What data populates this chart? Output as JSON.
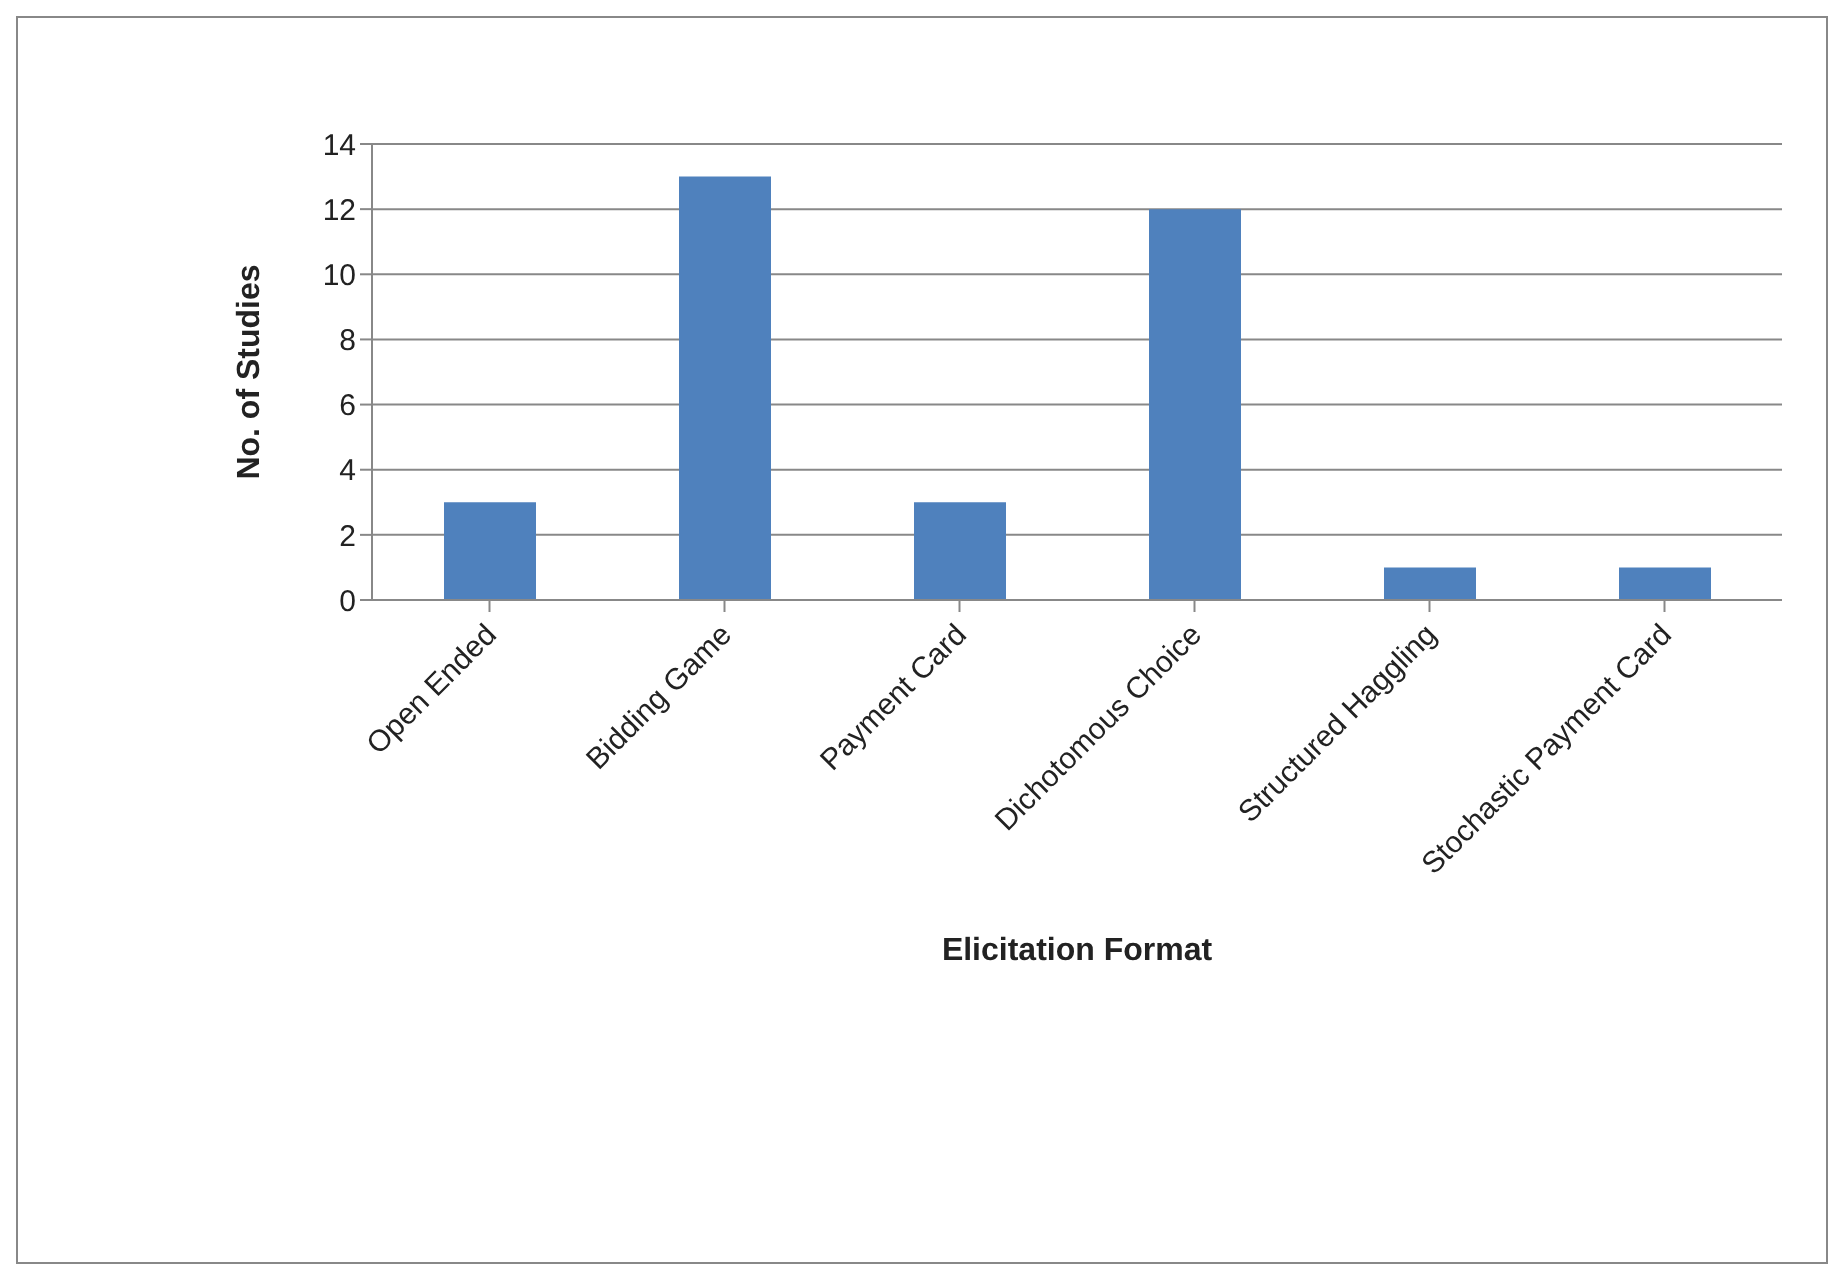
{
  "chart_data": {
    "type": "bar",
    "xlabel": "Elicitation Format",
    "ylabel": "No. of Studies",
    "categories": [
      "Open Ended",
      "Bidding Game",
      "Payment Card",
      "Dichotomous Choice",
      "Structured Haggling",
      "Stochastic Payment Card"
    ],
    "values": [
      3,
      13,
      3,
      12,
      1,
      1
    ],
    "color": "#4f81bd",
    "ylim": [
      0,
      14
    ],
    "yticks": [
      0,
      2,
      4,
      6,
      8,
      10,
      12,
      14
    ],
    "grid": "y",
    "legend": false
  }
}
